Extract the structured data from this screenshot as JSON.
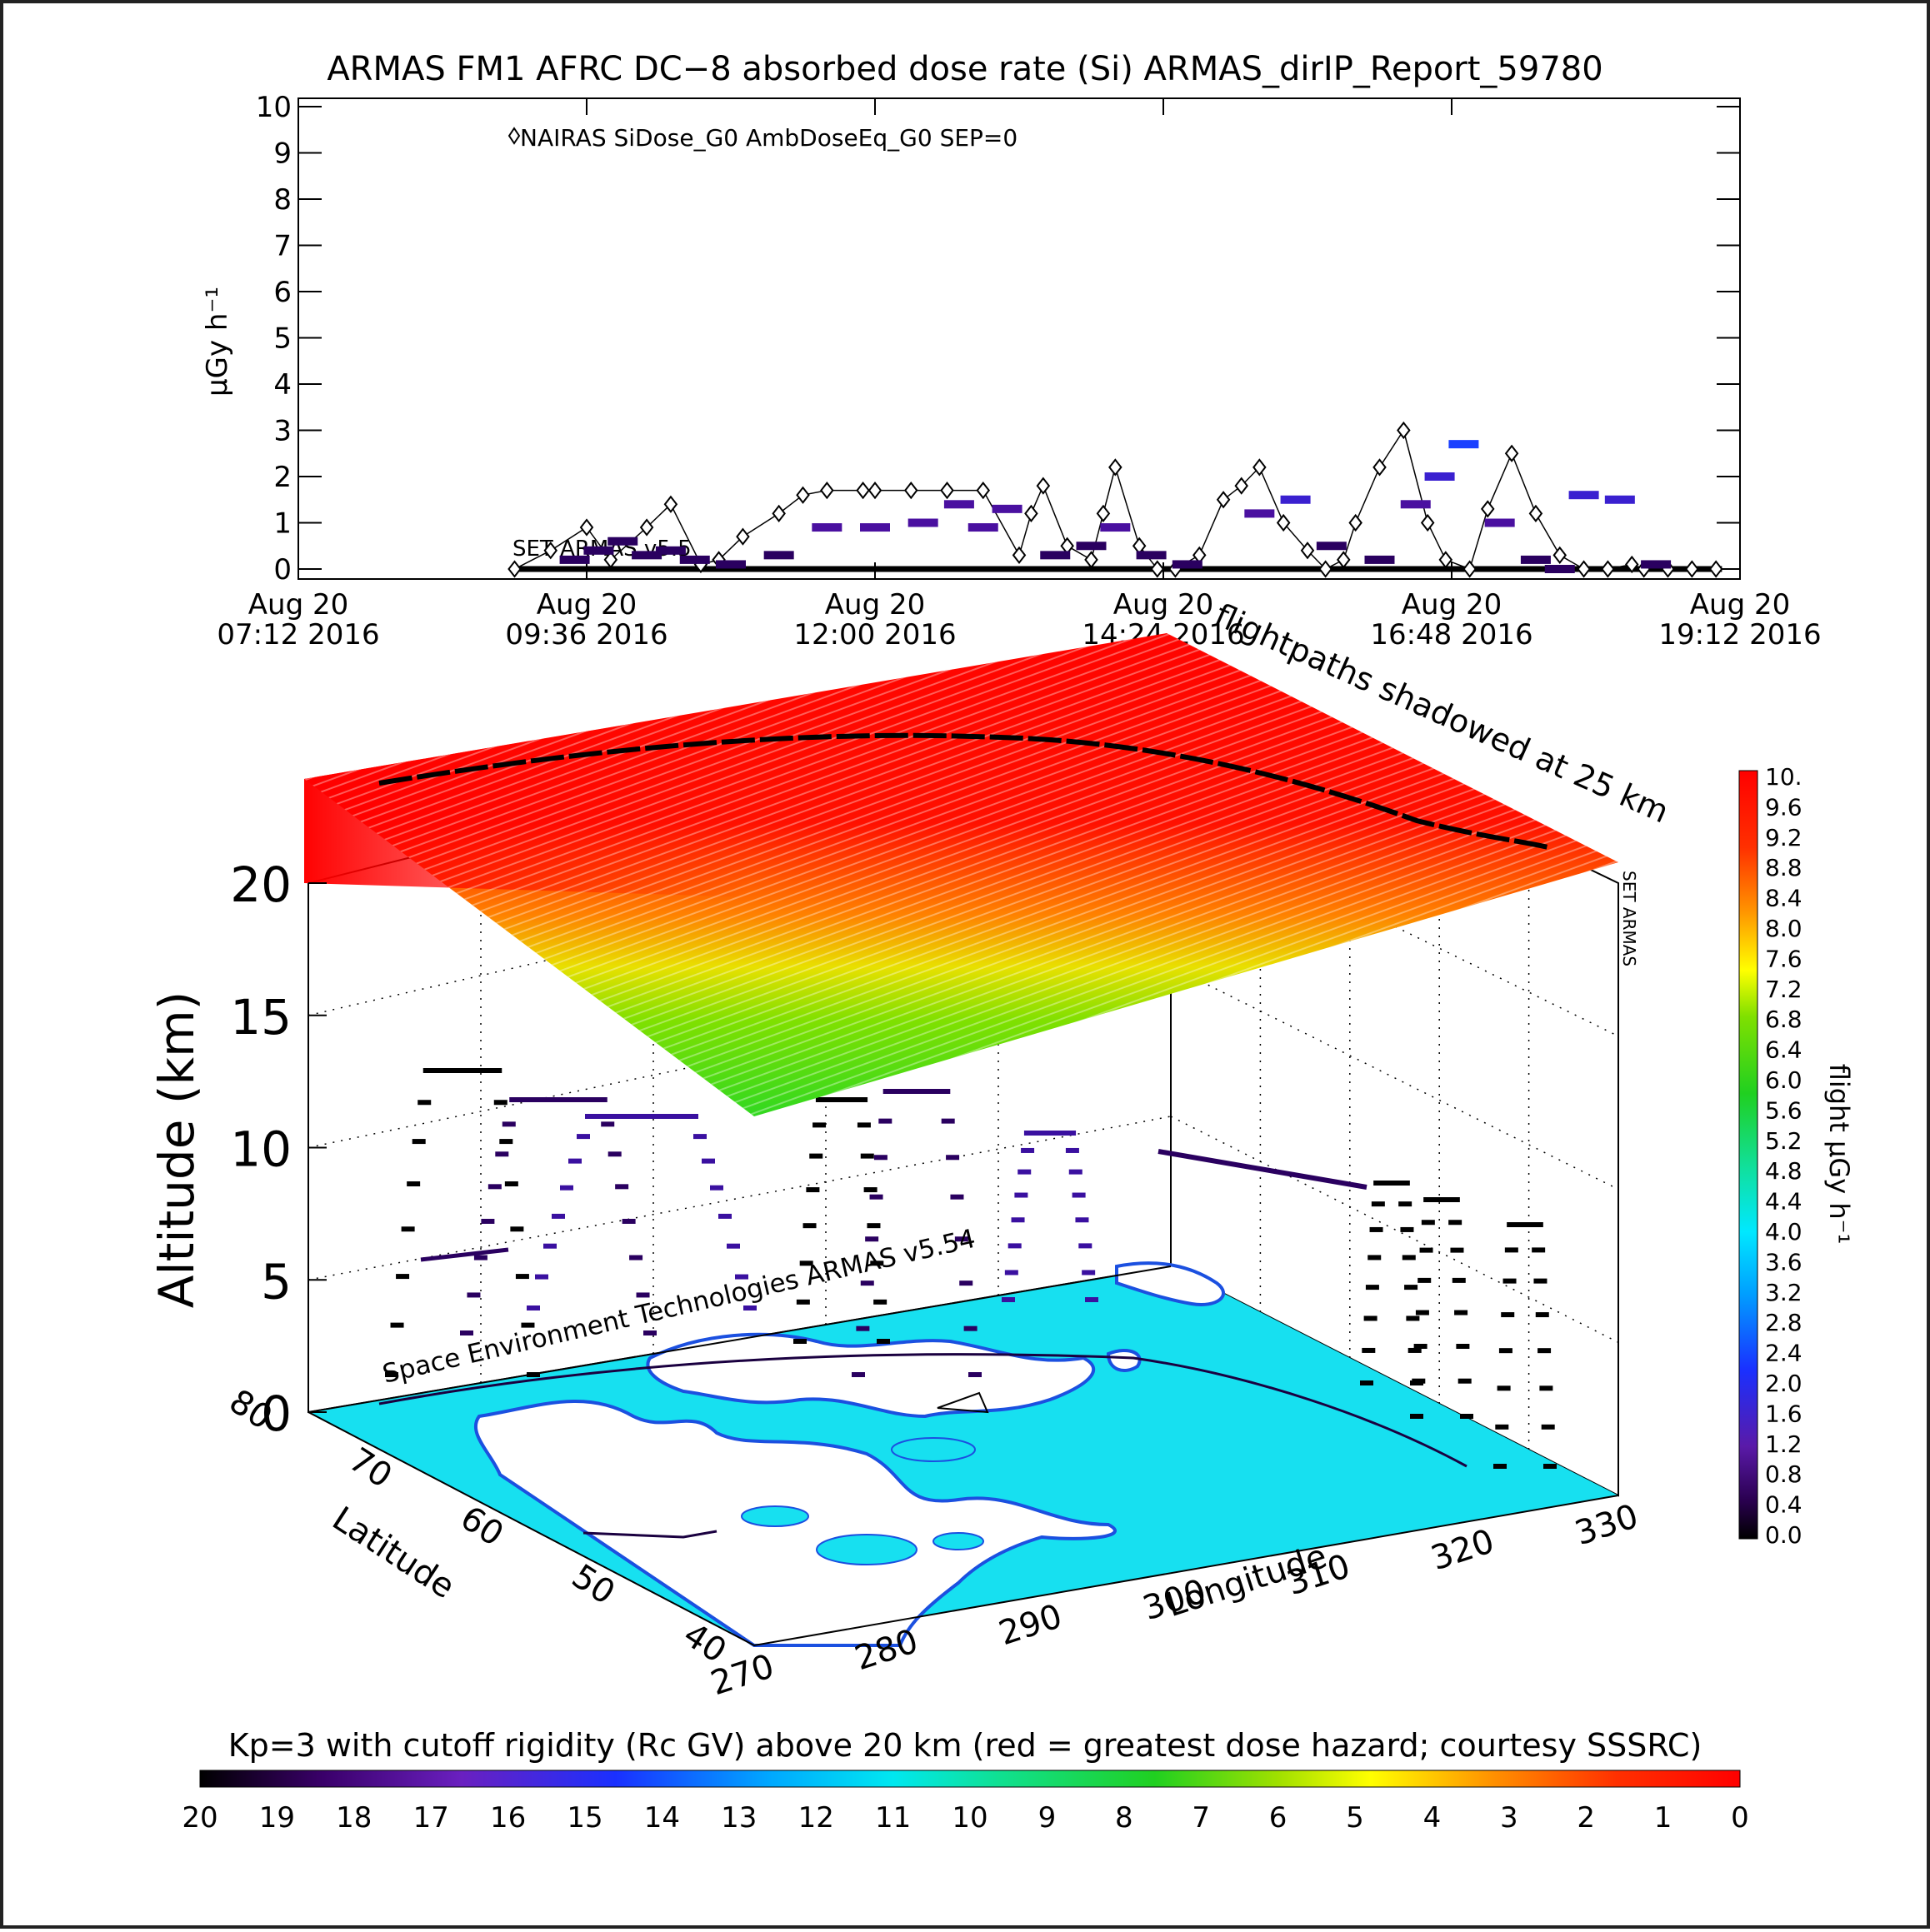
{
  "chart_data": [
    {
      "type": "scatter",
      "title": "ARMAS FM1 AFRC DC−8 absorbed dose rate (Si) ARMAS_dirIP_Report_59780",
      "ylabel": "μGy h⁻¹",
      "ylim": [
        0,
        10
      ],
      "yticks": [
        "0",
        "1",
        "2",
        "3",
        "4",
        "5",
        "6",
        "7",
        "8",
        "9",
        "10"
      ],
      "xticks": [
        {
          "date": "Aug 20",
          "time": "07:12",
          "year": "2016"
        },
        {
          "date": "Aug 20",
          "time": "09:36",
          "year": "2016"
        },
        {
          "date": "Aug 20",
          "time": "12:00",
          "year": "2016"
        },
        {
          "date": "Aug 20",
          "time": "14:24",
          "year": "2016"
        },
        {
          "date": "Aug 20",
          "time": "16:48",
          "year": "2016"
        },
        {
          "date": "Aug 20",
          "time": "19:12",
          "year": "2016"
        }
      ],
      "xlim_hours": [
        7.2,
        19.2
      ],
      "legend": "NAIRAS SiDose_G0 AmbDoseEq_G0 SEP=0",
      "annotation": "SET ARMAS v5.5",
      "series": [
        {
          "name": "NAIRAS SiDose_G0 AmbDoseEq_G0 SEP=0",
          "marker": "diamond-open",
          "x_hours": [
            9.0,
            9.3,
            9.6,
            9.8,
            10.1,
            10.3,
            10.55,
            10.7,
            10.9,
            11.2,
            11.4,
            11.6,
            11.9,
            12.0,
            12.3,
            12.6,
            12.9,
            13.2,
            13.3,
            13.4,
            13.6,
            13.8,
            13.9,
            14.0,
            14.2,
            14.35,
            14.5,
            14.7,
            14.9,
            15.05,
            15.2,
            15.4,
            15.6,
            15.75,
            15.9,
            16.0,
            16.2,
            16.4,
            16.6,
            16.75,
            16.95,
            17.1,
            17.3,
            17.5,
            17.7,
            17.9,
            18.1,
            18.3,
            18.4,
            18.6,
            18.8,
            19.0
          ],
          "y": [
            0.0,
            0.4,
            0.9,
            0.2,
            0.9,
            1.4,
            0.1,
            0.2,
            0.7,
            1.2,
            1.6,
            1.7,
            1.7,
            1.7,
            1.7,
            1.7,
            1.7,
            0.3,
            1.2,
            1.8,
            0.5,
            0.2,
            1.2,
            2.2,
            0.5,
            0.0,
            0.0,
            0.3,
            1.5,
            1.8,
            2.2,
            1.0,
            0.4,
            0.0,
            0.2,
            1.0,
            2.2,
            3.0,
            1.0,
            0.2,
            0.0,
            1.3,
            2.5,
            1.2,
            0.3,
            0.0,
            0.0,
            0.1,
            0.0,
            0.0,
            0.0,
            0.0
          ]
        },
        {
          "name": "ARMAS",
          "marker": "filled-circle",
          "x_hours": [
            9.5,
            9.7,
            9.9,
            10.1,
            10.3,
            10.5,
            10.8,
            11.2,
            11.6,
            12.0,
            12.4,
            12.7,
            12.9,
            13.1,
            13.5,
            13.8,
            14.0,
            14.3,
            14.6,
            15.2,
            15.5,
            15.8,
            16.2,
            16.5,
            16.7,
            16.9,
            17.2,
            17.5,
            17.7,
            17.9,
            18.2,
            18.5
          ],
          "y": [
            0.2,
            0.4,
            0.6,
            0.3,
            0.4,
            0.2,
            0.1,
            0.3,
            0.9,
            0.9,
            1.0,
            1.4,
            0.9,
            1.3,
            0.3,
            0.5,
            0.9,
            0.3,
            0.1,
            1.2,
            1.5,
            0.5,
            0.2,
            1.4,
            2.0,
            2.7,
            1.0,
            0.2,
            0.0,
            1.6,
            1.5,
            0.1
          ]
        }
      ]
    },
    {
      "type": "heatmap",
      "title": "flightpaths shadowed at 25 km",
      "zlabel": "Altitude (km)",
      "zticks": [
        "0",
        "5",
        "10",
        "15",
        "20"
      ],
      "ylabel": "Latitude",
      "yticks": [
        "40",
        "50",
        "60",
        "70",
        "80"
      ],
      "xlabel": "Longitude",
      "xticks": [
        "270",
        "280",
        "290",
        "300",
        "310",
        "320",
        "330"
      ],
      "annotation": "Space Environment Technologies ARMAS v5.54",
      "side_label": "SET ARMAS",
      "colorbar": {
        "label": "flight μGy h⁻¹",
        "ticks": [
          "0.0",
          "0.4",
          "0.8",
          "1.2",
          "1.6",
          "2.0",
          "2.4",
          "2.8",
          "3.2",
          "3.6",
          "4.0",
          "4.4",
          "4.8",
          "5.2",
          "5.6",
          "6.0",
          "6.4",
          "6.8",
          "7.2",
          "7.6",
          "8.0",
          "8.4",
          "8.8",
          "9.2",
          "9.6",
          "10."
        ]
      },
      "cutoff_rigidity_bar": {
        "label": "Kp=3 with cutoff rigidity (Rc GV) above 20 km (red = greatest dose hazard; courtesy SSSRC)",
        "ticks": [
          "20",
          "19",
          "18",
          "17",
          "16",
          "15",
          "14",
          "13",
          "12",
          "11",
          "10",
          "9",
          "8",
          "7",
          "6",
          "5",
          "4",
          "3",
          "2",
          "1",
          "0"
        ]
      },
      "colors": {
        "ocean": "#17e0f0",
        "land": "#ffffff",
        "coast": "#1b50e0",
        "high_dose": "#ff0000",
        "low_dose": "#3fdc20"
      }
    }
  ]
}
